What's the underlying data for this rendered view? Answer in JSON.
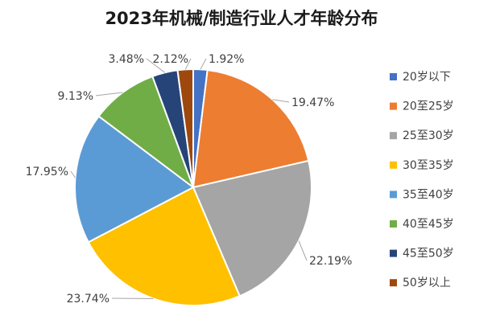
{
  "chart_data": {
    "type": "pie",
    "title": "2023年机械/制造行业人才年龄分布",
    "legend_position": "right",
    "slices": [
      {
        "label": "20岁以下",
        "value": 1.92,
        "display": "1.92%",
        "color": "#4472c4"
      },
      {
        "label": "20至25岁",
        "value": 19.47,
        "display": "19.47%",
        "color": "#ed7d31"
      },
      {
        "label": "25至30岁",
        "value": 22.19,
        "display": "22.19%",
        "color": "#a5a5a5"
      },
      {
        "label": "30至35岁",
        "value": 23.74,
        "display": "23.74%",
        "color": "#ffc000"
      },
      {
        "label": "35至40岁",
        "value": 17.95,
        "display": "17.95%",
        "color": "#5b9bd5"
      },
      {
        "label": "40至45岁",
        "value": 9.13,
        "display": "9.13%",
        "color": "#70ad47"
      },
      {
        "label": "45至50岁",
        "value": 3.48,
        "display": "3.48%",
        "color": "#264478"
      },
      {
        "label": "50岁以上",
        "value": 2.12,
        "display": "2.12%",
        "color": "#9e480e"
      }
    ]
  }
}
